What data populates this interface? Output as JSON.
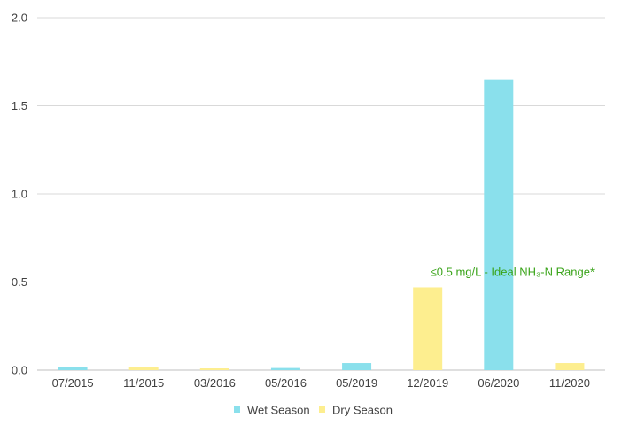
{
  "chart_data": {
    "type": "bar",
    "categories": [
      "07/2015",
      "11/2015",
      "03/2016",
      "05/2016",
      "05/2019",
      "12/2019",
      "06/2020",
      "11/2020"
    ],
    "values": [
      0.02,
      0.015,
      0.01,
      0.012,
      0.04,
      0.47,
      1.65,
      0.04
    ],
    "bar_series": [
      "Wet Season",
      "Dry Season",
      "Dry Season",
      "Wet Season",
      "Wet Season",
      "Dry Season",
      "Wet Season",
      "Dry Season"
    ],
    "series": [
      {
        "name": "Wet Season",
        "color": "#8ae0ec"
      },
      {
        "name": "Dry Season",
        "color": "#fdee8f"
      }
    ],
    "y_ticks": [
      "0.0",
      "0.5",
      "1.0",
      "1.5",
      "2.0"
    ],
    "ylim": [
      0,
      2.0
    ],
    "grid": true,
    "reference_line": {
      "value": 0.5,
      "label": "≤0.5 mg/L - Ideal NH₃-N Range*",
      "color": "#3aa41a"
    },
    "legend_position": "bottom",
    "title": "",
    "xlabel": "",
    "ylabel": ""
  }
}
